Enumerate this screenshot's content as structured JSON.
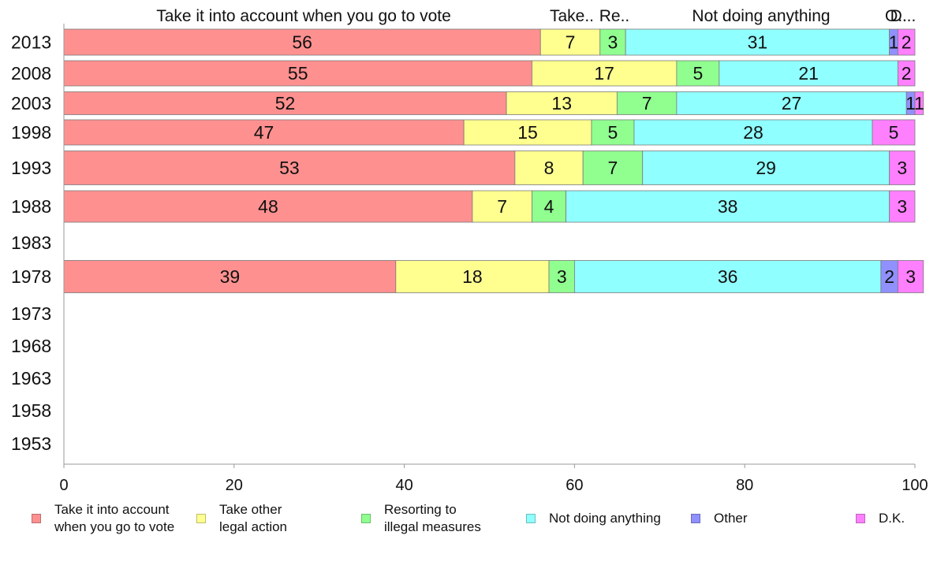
{
  "chart_data": {
    "type": "bar",
    "orientation": "horizontal",
    "stacked": true,
    "categories": [
      "2013",
      "2008",
      "2003",
      "1998",
      "1993",
      "1988",
      "1983",
      "1978",
      "1973",
      "1968",
      "1963",
      "1958",
      "1953"
    ],
    "series": [
      {
        "name": "Take it into account when you go to vote",
        "color": "#ff9090",
        "values": [
          56,
          55,
          52,
          47,
          53,
          48,
          null,
          39,
          null,
          null,
          null,
          null,
          null
        ]
      },
      {
        "name": "Take other legal action",
        "color": "#ffff90",
        "values": [
          7,
          17,
          13,
          15,
          8,
          7,
          null,
          18,
          null,
          null,
          null,
          null,
          null
        ]
      },
      {
        "name": "Resorting to illegal measures",
        "color": "#90ff90",
        "values": [
          3,
          5,
          7,
          5,
          7,
          4,
          null,
          3,
          null,
          null,
          null,
          null,
          null
        ]
      },
      {
        "name": "Not doing anything",
        "color": "#90ffff",
        "values": [
          31,
          21,
          27,
          28,
          29,
          38,
          null,
          36,
          null,
          null,
          null,
          null,
          null
        ]
      },
      {
        "name": "Other",
        "color": "#9090ff",
        "values": [
          1,
          0,
          1,
          0,
          0,
          0,
          null,
          2,
          null,
          null,
          null,
          null,
          null
        ]
      },
      {
        "name": "D.K.",
        "color": "#ff80ff",
        "values": [
          2,
          2,
          1,
          5,
          3,
          3,
          null,
          3,
          null,
          null,
          null,
          null,
          null
        ]
      }
    ],
    "top_labels": [
      "Take it into account when you go to vote",
      "Take..",
      "Re..",
      "Not doing anything",
      "O..",
      "D..."
    ],
    "xlim": [
      0,
      100
    ],
    "xticks": [
      0,
      20,
      40,
      60,
      80,
      100
    ],
    "grid": false,
    "legend_position": "bottom"
  },
  "legend": [
    {
      "label": "Take it into account\nwhen you go to vote",
      "color": "#ff9090"
    },
    {
      "label": "Take other\nlegal action",
      "color": "#ffff90"
    },
    {
      "label": "Resorting to\nillegal measures",
      "color": "#90ff90"
    },
    {
      "label": "Not doing anything",
      "color": "#90ffff"
    },
    {
      "label": "Other",
      "color": "#9090ff"
    },
    {
      "label": "D.K.",
      "color": "#ff80ff"
    }
  ]
}
